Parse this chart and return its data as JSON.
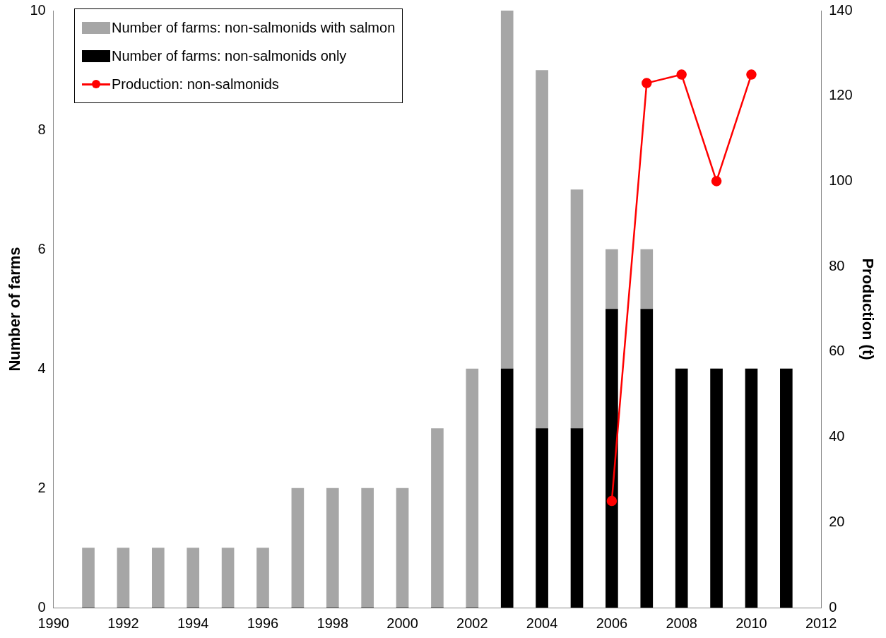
{
  "chart_data": {
    "type": "bar",
    "stacked": true,
    "ylabel": "Number of farms",
    "y2label": "Production (t)",
    "x": [
      1991,
      1992,
      1993,
      1994,
      1995,
      1996,
      1997,
      1998,
      1999,
      2000,
      2001,
      2002,
      2003,
      2004,
      2005,
      2006,
      2007,
      2008,
      2009,
      2010,
      2011
    ],
    "xlim": [
      1990,
      2012
    ],
    "xticks": [
      1990,
      1992,
      1994,
      1996,
      1998,
      2000,
      2002,
      2004,
      2006,
      2008,
      2010,
      2012
    ],
    "ylim": [
      0,
      10
    ],
    "yticks": [
      0,
      2,
      4,
      6,
      8,
      10
    ],
    "y2lim": [
      0,
      140
    ],
    "y2ticks": [
      0,
      20,
      40,
      60,
      80,
      100,
      120,
      140
    ],
    "grid": false,
    "legend": "top left",
    "series": [
      {
        "name": "Number of farms: non-salmonids only",
        "color": "#000000",
        "values": [
          0,
          0,
          0,
          0,
          0,
          0,
          0,
          0,
          0,
          0,
          0,
          0,
          4,
          3,
          3,
          5,
          5,
          4,
          4,
          4,
          4
        ]
      },
      {
        "name": "Number of farms: non-salmonids with salmon",
        "color": "#a6a6a6",
        "values": [
          1,
          1,
          1,
          1,
          1,
          1,
          2,
          2,
          2,
          2,
          3,
          4,
          6,
          6,
          4,
          1,
          1,
          0,
          0,
          0,
          0
        ]
      },
      {
        "name": "Production: non-salmonids",
        "type": "line",
        "axis": "y2",
        "marker": "circle",
        "line_style": "solid",
        "color": "#ff0000",
        "x": [
          2006,
          2007,
          2008,
          2009,
          2010
        ],
        "values": [
          25,
          123,
          125,
          100,
          125
        ]
      }
    ]
  }
}
